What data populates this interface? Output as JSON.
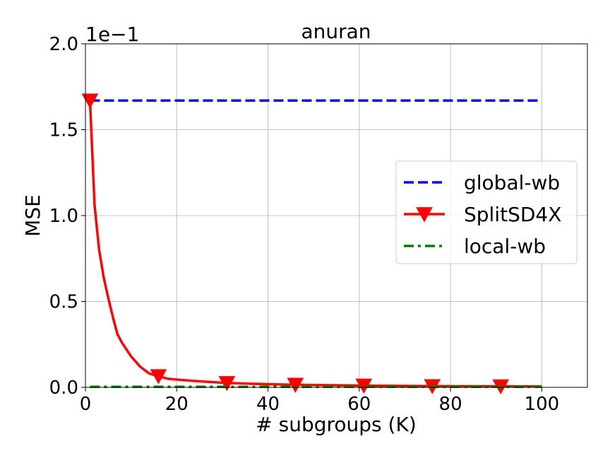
{
  "chart_data": {
    "type": "line",
    "title": "anuran",
    "xlabel": "# subgroups (K)",
    "ylabel": "MSE",
    "offset_text": "1e−1",
    "xlim": [
      0,
      110
    ],
    "ylim": [
      0,
      2.0
    ],
    "x_ticks": [
      0,
      20,
      40,
      60,
      80,
      100
    ],
    "x_tick_labels": [
      "0",
      "20",
      "40",
      "60",
      "80",
      "100"
    ],
    "y_ticks": [
      0,
      0.5,
      1.0,
      1.5,
      2.0
    ],
    "y_tick_labels": [
      "0.0",
      "0.5",
      "1.0",
      "1.5",
      "2.0"
    ],
    "grid": true,
    "legend_position": "center-right",
    "series": [
      {
        "name": "global-wb",
        "color": "#0000ff",
        "style": "dashed",
        "marker": "none",
        "x": [
          1,
          100
        ],
        "y": [
          1.67,
          1.67
        ]
      },
      {
        "name": "SplitSD4X",
        "color": "#ff0000",
        "style": "solid",
        "marker": "triangle-down",
        "x": [
          1,
          2,
          3,
          4,
          5,
          6,
          7,
          8,
          10,
          12,
          14,
          16,
          18,
          20,
          25,
          31,
          40,
          46,
          55,
          61,
          70,
          76,
          85,
          91,
          100
        ],
        "y": [
          1.67,
          1.06,
          0.8,
          0.64,
          0.52,
          0.41,
          0.31,
          0.26,
          0.18,
          0.12,
          0.08,
          0.065,
          0.05,
          0.045,
          0.035,
          0.025,
          0.018,
          0.015,
          0.012,
          0.01,
          0.008,
          0.007,
          0.006,
          0.006,
          0.005
        ],
        "marker_x": [
          1,
          16,
          31,
          46,
          61,
          76,
          91
        ],
        "marker_y": [
          1.67,
          0.065,
          0.025,
          0.015,
          0.01,
          0.007,
          0.006
        ]
      },
      {
        "name": "local-wb",
        "color": "#008000",
        "style": "dashdot",
        "marker": "none",
        "x": [
          1,
          100
        ],
        "y": [
          0.003,
          0.003
        ]
      }
    ]
  }
}
